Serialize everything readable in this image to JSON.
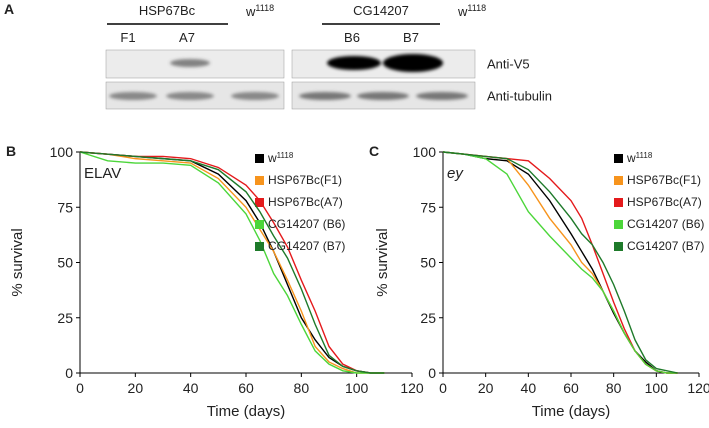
{
  "panel_a": {
    "label": "A",
    "groups": [
      {
        "name": "HSP67Bc",
        "lanes": [
          "F1",
          "A7"
        ]
      },
      {
        "name": "CG14207",
        "lanes": [
          "B6",
          "B7"
        ]
      }
    ],
    "control": {
      "base": "w",
      "sup": "1118"
    },
    "rows": [
      "Anti-V5",
      "Anti-tubulin"
    ]
  },
  "chart_data": [
    {
      "panel": "B",
      "type": "line",
      "annotation": "ELAV",
      "xlabel": "Time (days)",
      "ylabel": "% survival",
      "xlim": [
        0,
        120
      ],
      "ylim": [
        0,
        100
      ],
      "xticks": [
        0,
        20,
        40,
        60,
        80,
        100,
        120
      ],
      "yticks": [
        0,
        25,
        50,
        75,
        100
      ],
      "x": [
        0,
        10,
        20,
        30,
        40,
        50,
        60,
        65,
        70,
        75,
        80,
        85,
        90,
        95,
        100,
        105,
        110
      ],
      "series": [
        {
          "name": "w",
          "name_sup": "1118",
          "color": "#000000",
          "values": [
            100,
            99,
            98,
            97,
            96,
            90,
            78,
            68,
            55,
            40,
            25,
            15,
            7,
            3,
            1,
            0,
            0
          ]
        },
        {
          "name": "HSP67Bc(F1)",
          "color": "#f7941d",
          "values": [
            100,
            99,
            97,
            96,
            95,
            88,
            75,
            65,
            55,
            42,
            28,
            12,
            5,
            2,
            0,
            0,
            0
          ]
        },
        {
          "name": "HSP67Bc(A7)",
          "color": "#e41a1c",
          "values": [
            100,
            99,
            98,
            98,
            97,
            93,
            85,
            78,
            68,
            57,
            42,
            28,
            12,
            4,
            1,
            0,
            0
          ]
        },
        {
          "name": "CG14207 (B6)",
          "color": "#4cd63a",
          "values": [
            100,
            96,
            95,
            95,
            94,
            86,
            72,
            60,
            45,
            35,
            22,
            10,
            4,
            1,
            0,
            0,
            0
          ]
        },
        {
          "name": "CG14207 (B7)",
          "color": "#1e7a2a",
          "values": [
            100,
            99,
            98,
            97,
            96,
            92,
            82,
            73,
            62,
            52,
            38,
            22,
            8,
            3,
            1,
            0,
            0
          ]
        }
      ]
    },
    {
      "panel": "C",
      "type": "line",
      "annotation": "ey",
      "xlabel": "Time (days)",
      "ylabel": "% survival",
      "xlim": [
        0,
        120
      ],
      "ylim": [
        0,
        100
      ],
      "xticks": [
        0,
        20,
        40,
        60,
        80,
        100,
        120
      ],
      "yticks": [
        0,
        25,
        50,
        75,
        100
      ],
      "x": [
        0,
        10,
        20,
        30,
        40,
        50,
        60,
        65,
        70,
        75,
        80,
        85,
        90,
        95,
        100,
        105,
        110
      ],
      "series": [
        {
          "name": "w",
          "name_sup": "1118",
          "color": "#000000",
          "values": [
            100,
            99,
            97,
            96,
            90,
            78,
            63,
            55,
            47,
            37,
            27,
            18,
            10,
            5,
            1,
            0,
            0
          ]
        },
        {
          "name": "HSP67Bc(F1)",
          "color": "#f7941d",
          "values": [
            100,
            99,
            98,
            97,
            85,
            70,
            58,
            50,
            45,
            37,
            28,
            18,
            10,
            4,
            1,
            0,
            0
          ]
        },
        {
          "name": "HSP67Bc(A7)",
          "color": "#e41a1c",
          "values": [
            100,
            99,
            98,
            97,
            96,
            88,
            78,
            70,
            58,
            45,
            32,
            20,
            10,
            4,
            1,
            0,
            0
          ]
        },
        {
          "name": "CG14207 (B6)",
          "color": "#4cd63a",
          "values": [
            100,
            99,
            97,
            90,
            73,
            62,
            52,
            47,
            43,
            37,
            28,
            18,
            10,
            4,
            1,
            0,
            0
          ]
        },
        {
          "name": "CG14207 (B7)",
          "color": "#1e7a2a",
          "values": [
            100,
            99,
            98,
            97,
            92,
            82,
            70,
            63,
            58,
            50,
            40,
            28,
            15,
            6,
            2,
            1,
            0
          ]
        }
      ]
    }
  ]
}
